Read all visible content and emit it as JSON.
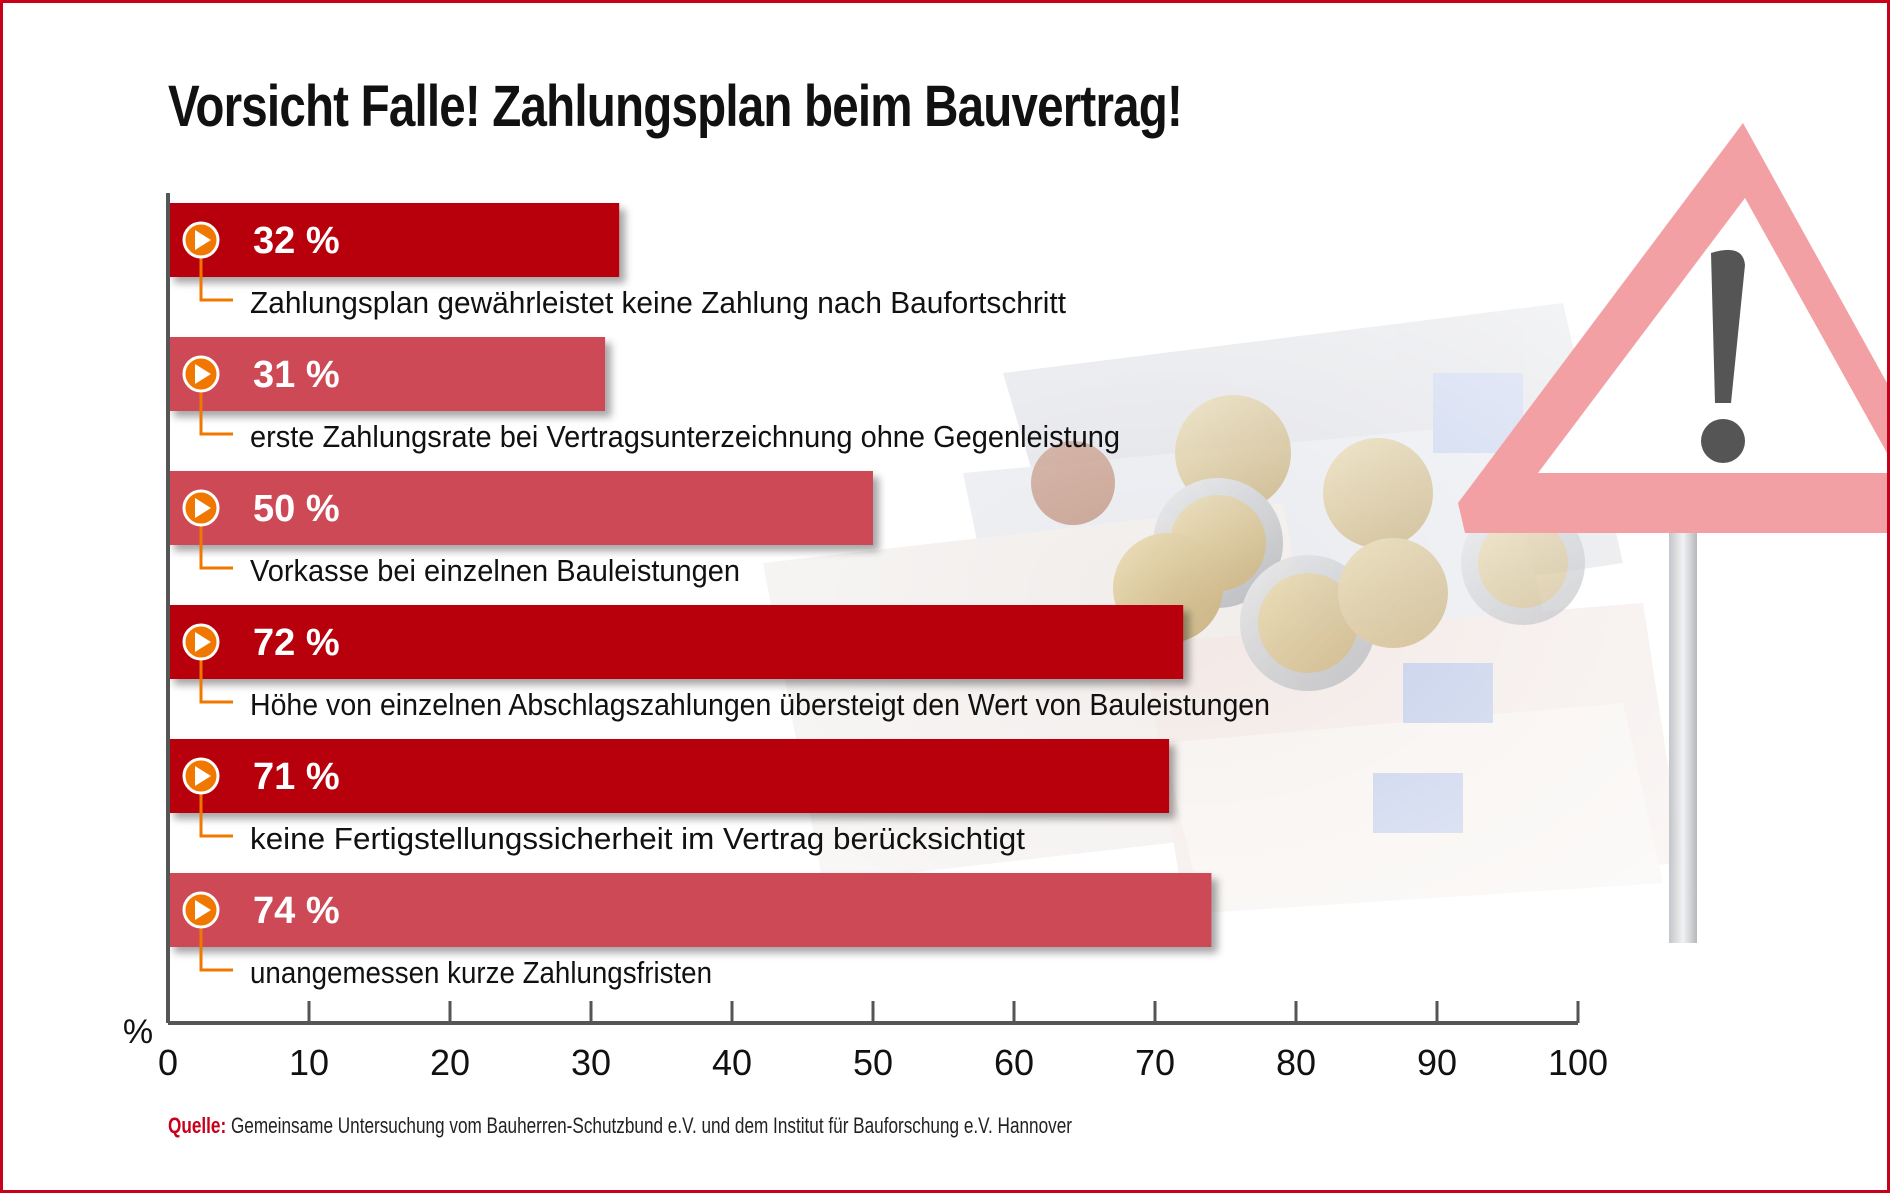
{
  "title": "Vorsicht Falle! Zahlungsplan beim Bauvertrag!",
  "source": {
    "prefix": "Quelle:",
    "text": " Gemeinsame Untersuchung vom Bauherren-Schutzbund e.V. und dem Institut für Bauforschung e.V. Hannover"
  },
  "colors": {
    "frame": "#c8001a",
    "bar_dark": "#b8000f",
    "bar_light": "#cd4a56",
    "marker": "#f07800",
    "axis": "#555555"
  },
  "chart_data": {
    "type": "bar",
    "orientation": "horizontal",
    "xunit_label": "%",
    "xlim": [
      0,
      100
    ],
    "ticks": [
      0,
      10,
      20,
      30,
      40,
      50,
      60,
      70,
      80,
      90,
      100
    ],
    "bars": [
      {
        "value": 32,
        "value_label": "32 %",
        "label": "Zahlungsplan gewährleistet keine Zahlung nach Baufortschritt",
        "shade": "dark"
      },
      {
        "value": 31,
        "value_label": "31 %",
        "label": "erste Zahlungsrate bei Vertragsunterzeichnung ohne Gegenleistung",
        "shade": "light"
      },
      {
        "value": 50,
        "value_label": "50 %",
        "label": "Vorkasse bei einzelnen Bauleistungen",
        "shade": "light"
      },
      {
        "value": 72,
        "value_label": "72 %",
        "label": "Höhe von einzelnen Abschlagszahlungen übersteigt den Wert von Bauleistungen",
        "shade": "dark"
      },
      {
        "value": 71,
        "value_label": "71 %",
        "label": "keine Fertigstellungssicherheit im Vertrag berücksichtigt",
        "shade": "dark"
      },
      {
        "value": 74,
        "value_label": "74 %",
        "label": "unangemessen kurze Zahlungsfristen",
        "shade": "light"
      }
    ],
    "grid": false,
    "legend": "none"
  }
}
